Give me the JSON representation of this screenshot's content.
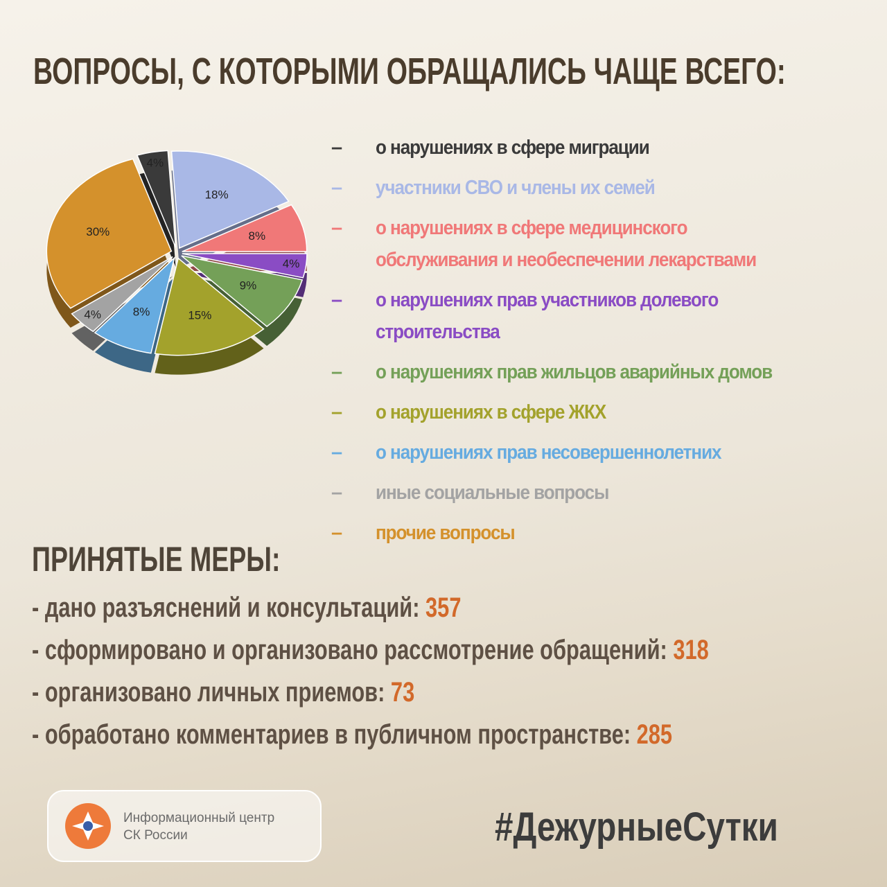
{
  "title": "ВОПРОСЫ, С КОТОРЫМИ ОБРАЩАЛИСЬ ЧАЩЕ ВСЕГО:",
  "chart_data": {
    "type": "pie",
    "categories": [
      "о нарушениях в сфере миграции",
      "участники СВО и члены их семей",
      "о нарушениях в сфере медицинского обслуживания и необеспечении лекарствами",
      "о нарушениях прав участников долевого строительства",
      "о нарушениях прав жильцов аварийных домов",
      "о нарушениях в сфере ЖКХ",
      "о нарушениях прав несовершеннолетних",
      "иные социальные вопросы",
      "прочие вопросы"
    ],
    "values": [
      4,
      18,
      8,
      4,
      9,
      15,
      8,
      4,
      30
    ],
    "value_labels": [
      "4%",
      "18%",
      "8%",
      "4%",
      "9%",
      "15%",
      "8%",
      "4%",
      "30%"
    ],
    "colors": [
      "#3a3a3a",
      "#a9b8e6",
      "#f07878",
      "#8a4cc4",
      "#74a058",
      "#a3a22c",
      "#66abe0",
      "#a3a3a3",
      "#d4912c"
    ]
  },
  "measures": {
    "title": "ПРИНЯТЫЕ МЕРЫ:",
    "items": [
      {
        "label": "- дано разъяснений и консультаций:",
        "value": 357
      },
      {
        "label": "- сформировано и организовано рассмотрение обращений:",
        "value": 318
      },
      {
        "label": "- организовано личных приемов:",
        "value": 73
      },
      {
        "label": "- обработано комментариев в публичном пространстве:",
        "value": 285
      }
    ]
  },
  "footer": {
    "org_line1": "Информационный центр",
    "org_line2": "СК России",
    "hashtag": "#ДежурныеСутки"
  }
}
